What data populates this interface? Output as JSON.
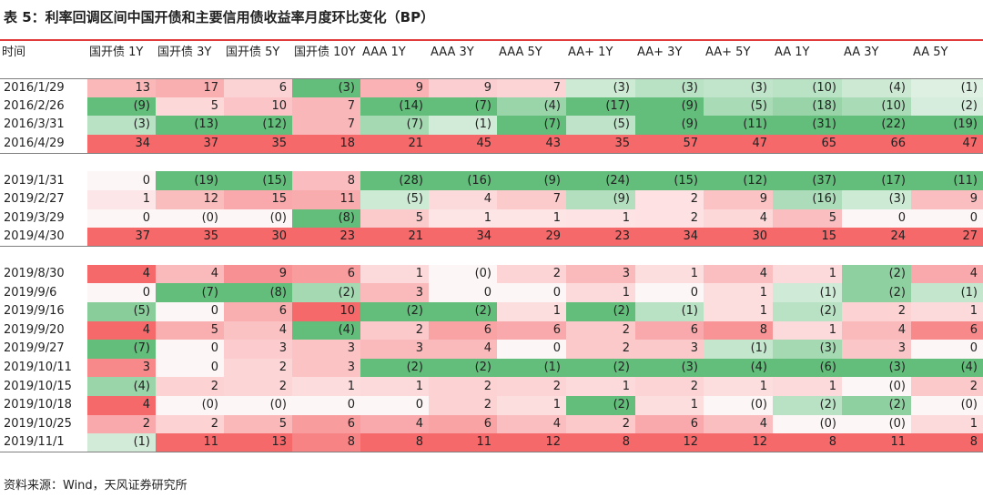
{
  "title": "表 5：利率回调区间中国开债和主要信用债收益率月度环比变化（BP）",
  "source": "资料来源：Wind，天风证券研究所",
  "colors": {
    "header_line": "#e23b3b",
    "pos_max": "#f5696b",
    "neg_max": "#63be7b"
  },
  "table": {
    "headers": [
      "时间",
      "国开债 1Y",
      "国开债 3Y",
      "国开债 5Y",
      "国开债 10Y",
      "AAA 1Y",
      "AAA 3Y",
      "AAA 5Y",
      "AA+ 1Y",
      "AA+ 3Y",
      "AA+ 5Y",
      "AA 1Y",
      "AA 3Y",
      "AA 5Y"
    ],
    "groups": [
      [
        {
          "date": "2016/1/29",
          "values": [
            13,
            17,
            6,
            -3,
            9,
            9,
            7,
            -3,
            -3,
            -3,
            -10,
            -4,
            -1
          ]
        },
        {
          "date": "2016/2/26",
          "values": [
            -9,
            5,
            10,
            7,
            -14,
            -7,
            -4,
            -17,
            -9,
            -5,
            -18,
            -10,
            -2
          ]
        },
        {
          "date": "2016/3/31",
          "values": [
            -3,
            -13,
            -12,
            7,
            -7,
            -1,
            -7,
            -5,
            -9,
            -11,
            -31,
            -22,
            -19
          ]
        },
        {
          "date": "2016/4/29",
          "values": [
            34,
            37,
            35,
            18,
            21,
            45,
            43,
            35,
            57,
            47,
            65,
            66,
            47
          ]
        }
      ],
      [
        {
          "date": "2019/1/31",
          "values": [
            0,
            -19,
            -15,
            8,
            -28,
            -16,
            -9,
            -24,
            -15,
            -12,
            -37,
            -17,
            -11
          ]
        },
        {
          "date": "2019/2/27",
          "values": [
            1,
            12,
            15,
            11,
            -5,
            4,
            7,
            -9,
            2,
            9,
            -16,
            -3,
            9
          ]
        },
        {
          "date": "2019/3/29",
          "values": [
            0,
            0,
            0,
            -8,
            5,
            1,
            1,
            1,
            2,
            4,
            5,
            0,
            0
          ]
        },
        {
          "date": "2019/4/30",
          "values": [
            37,
            35,
            30,
            23,
            21,
            34,
            29,
            23,
            34,
            30,
            15,
            24,
            27
          ]
        }
      ],
      [
        {
          "date": "2019/8/30",
          "values": [
            4,
            4,
            9,
            6,
            1,
            0,
            2,
            3,
            1,
            4,
            1,
            -2,
            4
          ]
        },
        {
          "date": "2019/9/6",
          "values": [
            0,
            -7,
            -8,
            -2,
            3,
            0,
            0,
            1,
            0,
            1,
            -1,
            -2,
            -1
          ]
        },
        {
          "date": "2019/9/16",
          "values": [
            -5,
            0,
            6,
            10,
            -2,
            -2,
            1,
            -2,
            -1,
            1,
            -2,
            2,
            1
          ]
        },
        {
          "date": "2019/9/20",
          "values": [
            4,
            5,
            4,
            -4,
            2,
            6,
            6,
            2,
            6,
            8,
            1,
            4,
            6
          ]
        },
        {
          "date": "2019/9/27",
          "values": [
            -7,
            0,
            3,
            3,
            3,
            4,
            0,
            2,
            3,
            -1,
            -3,
            3,
            0
          ]
        },
        {
          "date": "2019/10/11",
          "values": [
            3,
            0,
            2,
            3,
            -2,
            -2,
            -1,
            -2,
            -3,
            -4,
            -6,
            -3,
            -4
          ]
        },
        {
          "date": "2019/10/15",
          "values": [
            -4,
            2,
            2,
            1,
            1,
            2,
            2,
            1,
            2,
            1,
            1,
            0,
            2
          ]
        },
        {
          "date": "2019/10/18",
          "values": [
            4,
            0,
            0,
            0,
            0,
            2,
            1,
            -2,
            1,
            0,
            -2,
            -2,
            0
          ]
        },
        {
          "date": "2019/10/25",
          "values": [
            2,
            2,
            5,
            6,
            4,
            6,
            4,
            2,
            6,
            4,
            0,
            0,
            1
          ]
        },
        {
          "date": "2019/11/1",
          "values": [
            -1,
            11,
            13,
            8,
            8,
            11,
            12,
            8,
            12,
            12,
            8,
            11,
            8
          ]
        }
      ]
    ],
    "display": {
      "2019/3/29": [
        "0",
        "(0)",
        "(0)",
        "(8)",
        "5",
        "1",
        "1",
        "1",
        "2",
        "4",
        "5",
        "0",
        "0"
      ],
      "2019/8/30": [
        "4",
        "4",
        "9",
        "6",
        "1",
        "(0)",
        "2",
        "3",
        "1",
        "4",
        "1",
        "(2)",
        "4"
      ],
      "2019/10/15": [
        "(4)",
        "2",
        "2",
        "1",
        "1",
        "2",
        "2",
        "1",
        "2",
        "1",
        "1",
        "(0)",
        "2"
      ],
      "2019/10/18": [
        "4",
        "(0)",
        "(0)",
        "0",
        "0",
        "2",
        "1",
        "(2)",
        "1",
        "(0)",
        "(2)",
        "(2)",
        "(0)"
      ],
      "2019/10/25": [
        "2",
        "2",
        "5",
        "6",
        "4",
        "6",
        "4",
        "2",
        "6",
        "4",
        "(0)",
        "(0)",
        "1"
      ]
    }
  }
}
